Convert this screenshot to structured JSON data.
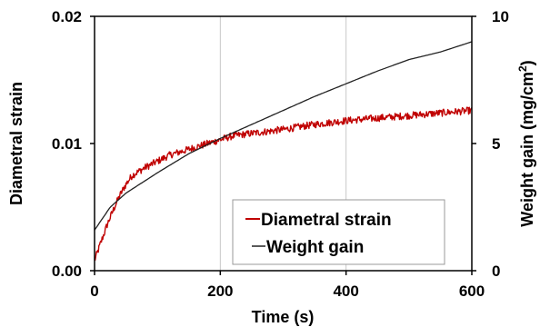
{
  "chart_data": {
    "type": "line",
    "title": "",
    "xlabel": "Time (s)",
    "ylabel": "Diametral strain",
    "y2label_main": "Weight gain  (mg/cm",
    "y2label_sup": "2",
    "y2label_close": ")",
    "xlim": [
      0,
      600
    ],
    "ylim": [
      0,
      0.02
    ],
    "y2lim": [
      0,
      10
    ],
    "x_ticks": [
      0,
      200,
      400,
      600
    ],
    "x_tick_labels": [
      "0",
      "200",
      "400",
      "600"
    ],
    "y_ticks": [
      0,
      0.01,
      0.02
    ],
    "y_tick_labels": [
      "0.00",
      "0.01",
      "0.02"
    ],
    "y2_ticks": [
      0,
      5,
      10
    ],
    "y2_tick_labels": [
      "0",
      "5",
      "10"
    ],
    "grid": "vertical only",
    "legend_position": "bottom-right",
    "series": [
      {
        "name": "Diametral strain",
        "axis": "left",
        "color": "#c00000",
        "noisy": true,
        "x": [
          0,
          10,
          20,
          30,
          40,
          50,
          60,
          80,
          100,
          120,
          140,
          160,
          180,
          200,
          220,
          250,
          300,
          350,
          400,
          450,
          500,
          550,
          600
        ],
        "y": [
          0.0008,
          0.0022,
          0.0036,
          0.0048,
          0.0059,
          0.0068,
          0.0075,
          0.0081,
          0.0086,
          0.0091,
          0.0094,
          0.0097,
          0.01,
          0.0103,
          0.0106,
          0.0108,
          0.0111,
          0.0115,
          0.0118,
          0.012,
          0.0122,
          0.0124,
          0.0126
        ]
      },
      {
        "name": "Weight gain",
        "axis": "right",
        "color": "#222222",
        "noisy": false,
        "x": [
          0,
          25,
          50,
          100,
          150,
          200,
          250,
          300,
          350,
          400,
          450,
          500,
          550,
          600
        ],
        "y": [
          1.6,
          2.5,
          3.05,
          3.85,
          4.6,
          5.2,
          5.75,
          6.3,
          6.85,
          7.35,
          7.85,
          8.3,
          8.6,
          9.0
        ]
      }
    ]
  }
}
